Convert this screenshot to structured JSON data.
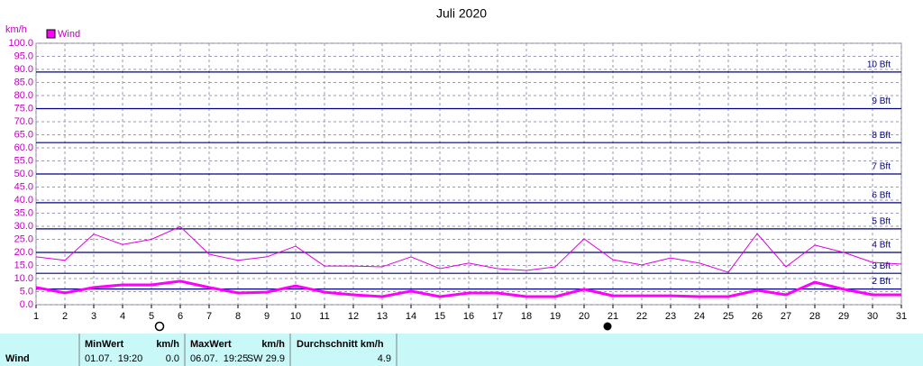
{
  "chart_data": {
    "type": "line",
    "title": "Juli 2020",
    "y_label": "km/h",
    "legend": "top-left",
    "grid": true,
    "x": [
      1,
      2,
      3,
      4,
      5,
      6,
      7,
      8,
      9,
      10,
      11,
      12,
      13,
      14,
      15,
      16,
      17,
      18,
      19,
      20,
      21,
      22,
      23,
      24,
      25,
      26,
      27,
      28,
      29,
      30,
      31
    ],
    "xlim": [
      1,
      31
    ],
    "xticks": [
      1,
      2,
      3,
      4,
      5,
      6,
      7,
      8,
      9,
      10,
      11,
      12,
      13,
      14,
      15,
      16,
      17,
      18,
      19,
      20,
      21,
      22,
      23,
      24,
      25,
      26,
      27,
      28,
      29,
      30,
      31
    ],
    "ylim": [
      0,
      100
    ],
    "yticks": [
      {
        "value": 0,
        "label": "0.0"
      },
      {
        "value": 5,
        "label": "5.0"
      },
      {
        "value": 10,
        "label": "10.0"
      },
      {
        "value": 15,
        "label": "15.0"
      },
      {
        "value": 20,
        "label": "20.0"
      },
      {
        "value": 25,
        "label": "25.0"
      },
      {
        "value": 30,
        "label": "30.0"
      },
      {
        "value": 35,
        "label": "35.0"
      },
      {
        "value": 40,
        "label": "40.0"
      },
      {
        "value": 45,
        "label": "45.0"
      },
      {
        "value": 50,
        "label": "50.0"
      },
      {
        "value": 55,
        "label": "55.0"
      },
      {
        "value": 60,
        "label": "60.0"
      },
      {
        "value": 65,
        "label": "65.0"
      },
      {
        "value": 70,
        "label": "70.0"
      },
      {
        "value": 75,
        "label": "75.0"
      },
      {
        "value": 80,
        "label": "80.0"
      },
      {
        "value": 85,
        "label": "85.0"
      },
      {
        "value": 90,
        "label": "90.0"
      },
      {
        "value": 95,
        "label": "95.0"
      },
      {
        "value": 100,
        "label": "100.0"
      }
    ],
    "reference_lines": [
      {
        "value": 6,
        "label": "2 Bft"
      },
      {
        "value": 12,
        "label": "3 Bft"
      },
      {
        "value": 20,
        "label": "4 Bft"
      },
      {
        "value": 29,
        "label": "5 Bft"
      },
      {
        "value": 39,
        "label": "6 Bft"
      },
      {
        "value": 50,
        "label": "7 Bft"
      },
      {
        "value": 62,
        "label": "8 Bft"
      },
      {
        "value": 75,
        "label": "9 Bft"
      },
      {
        "value": 89,
        "label": "10 Bft"
      }
    ],
    "series": [
      {
        "name": "Wind",
        "color": "#ff00ff",
        "values": [
          6.6,
          4.5,
          6.6,
          7.6,
          7.6,
          9.0,
          6.6,
          4.5,
          4.8,
          7.2,
          4.8,
          3.8,
          3.1,
          5.2,
          3.1,
          4.5,
          4.5,
          3.1,
          3.1,
          5.9,
          3.4,
          3.4,
          3.4,
          3.1,
          3.1,
          5.5,
          3.8,
          8.6,
          5.9,
          3.8,
          3.8
        ]
      },
      {
        "color": "#e000e0",
        "values": [
          18.3,
          17.0,
          27.0,
          23.0,
          25.0,
          29.9,
          19.3,
          17.0,
          18.3,
          22.4,
          14.8,
          14.8,
          14.5,
          18.3,
          13.8,
          15.9,
          13.8,
          13.1,
          14.5,
          25.2,
          17.2,
          15.2,
          17.9,
          15.9,
          12.4,
          27.2,
          14.5,
          22.8,
          20.0,
          16.2,
          15.5
        ]
      }
    ]
  },
  "table": {
    "row_label": "Wind",
    "min": {
      "header": "MinWert",
      "unit": "km/h",
      "time": "01.07.  19:20",
      "value": "0.0"
    },
    "max": {
      "header": "MaxWert",
      "unit": "km/h",
      "time": "06.07.  19:25",
      "value": "SW 29.9"
    },
    "avg": {
      "header": "Durchschnitt km/h",
      "value": "4.9"
    }
  }
}
